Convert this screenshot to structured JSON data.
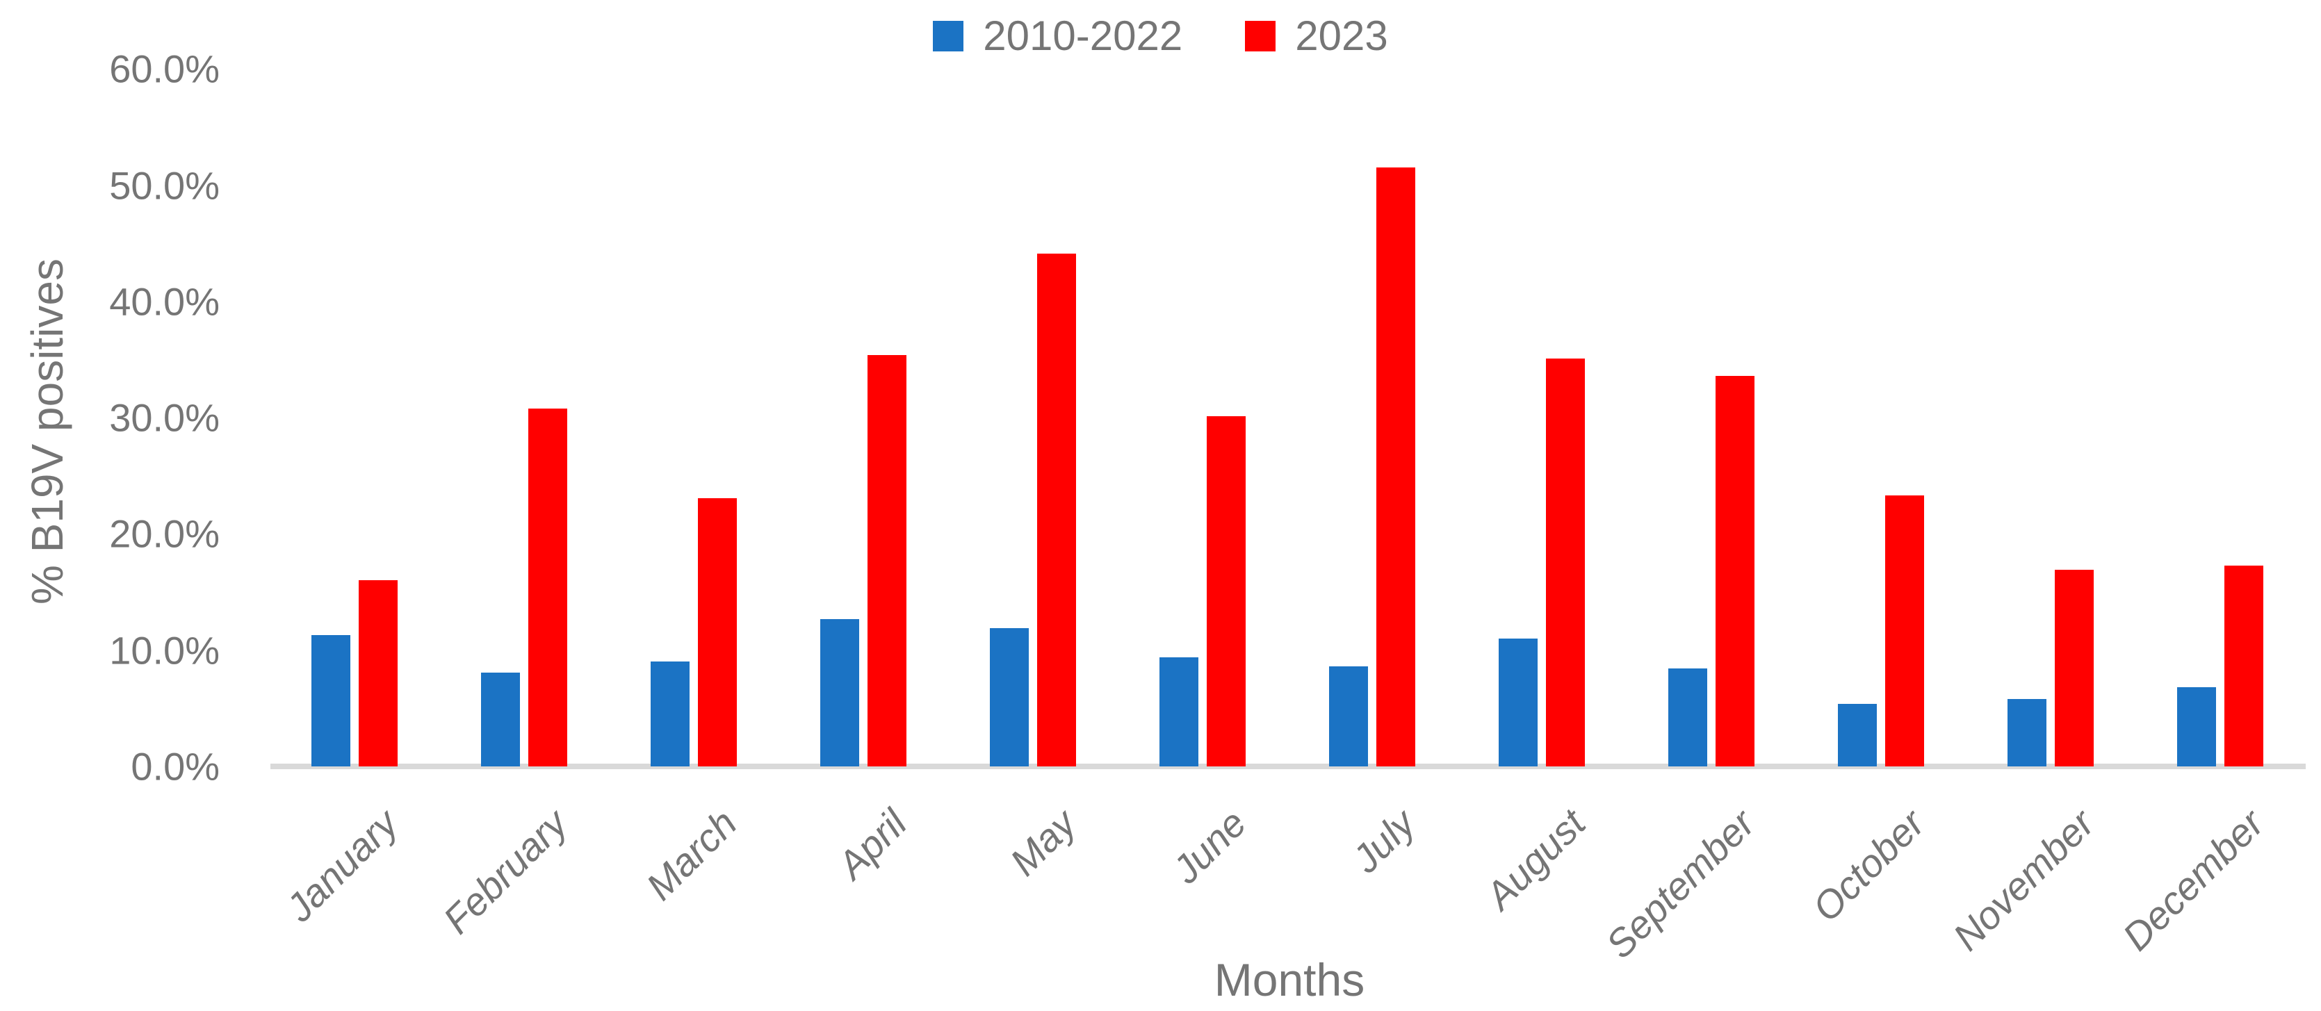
{
  "chart_data": {
    "type": "bar",
    "title": "",
    "xlabel": "Months",
    "ylabel": "% B19V positives",
    "categories": [
      "January",
      "February",
      "March",
      "April",
      "May",
      "June",
      "July",
      "August",
      "September",
      "October",
      "November",
      "December"
    ],
    "series": [
      {
        "name": "2010-2022",
        "color": "#1b73c4",
        "values": [
          11.3,
          8.1,
          9.0,
          12.7,
          11.9,
          9.4,
          8.6,
          11.0,
          8.4,
          5.4,
          5.8,
          6.8
        ]
      },
      {
        "name": "2023",
        "color": "#ff0000",
        "values": [
          16.0,
          30.8,
          23.1,
          35.4,
          44.1,
          30.1,
          51.5,
          35.1,
          33.6,
          23.3,
          16.9,
          17.3
        ]
      }
    ],
    "ylim": [
      0,
      60
    ],
    "ytick_step": 10,
    "ytick_labels": [
      "0.0%",
      "10.0%",
      "20.0%",
      "30.0%",
      "40.0%",
      "50.0%",
      "60.0%"
    ],
    "grid": false,
    "legend_position": "top-center",
    "axis_line_color": "#d9d9d9",
    "text_color": "#757575"
  },
  "legend": {
    "items": [
      {
        "label": "2010-2022",
        "color": "#1b73c4"
      },
      {
        "label": "2023",
        "color": "#ff0000"
      }
    ]
  },
  "axes": {
    "y_title": "% B19V positives",
    "x_title": "Months"
  }
}
